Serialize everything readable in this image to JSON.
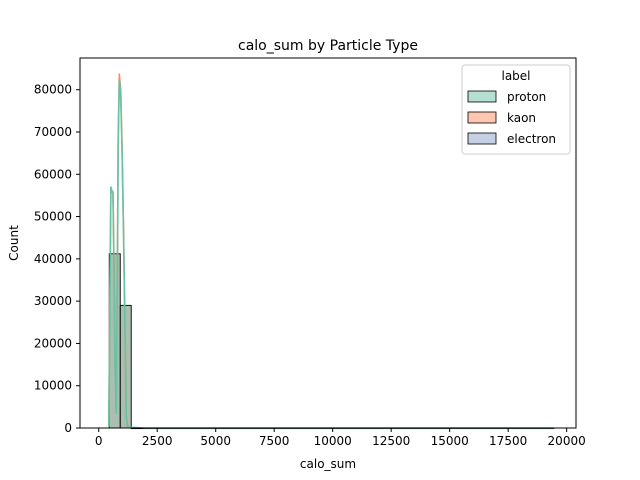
{
  "chart_data": {
    "type": "bar",
    "title": "calo_sum by Particle Type",
    "xlabel": "calo_sum",
    "ylabel": "Count",
    "xlim": [
      -800,
      20400
    ],
    "ylim": [
      0,
      87500
    ],
    "x_ticks": [
      0,
      2500,
      5000,
      7500,
      10000,
      12500,
      15000,
      17500,
      20000
    ],
    "x_tick_labels": [
      "0",
      "2500",
      "5000",
      "7500",
      "10000",
      "12500",
      "15000",
      "17500",
      "20000"
    ],
    "y_ticks": [
      0,
      10000,
      20000,
      30000,
      40000,
      50000,
      60000,
      70000,
      80000
    ],
    "y_tick_labels": [
      "0",
      "10000",
      "20000",
      "30000",
      "40000",
      "50000",
      "60000",
      "70000",
      "80000"
    ],
    "legend": {
      "title": "label",
      "position": "top-right",
      "entries": [
        "proton",
        "kaon",
        "electron"
      ]
    },
    "colors": {
      "proton": "#66c2a5",
      "kaon": "#fc8d62",
      "electron": "#8da0cb"
    },
    "bins": [
      {
        "x0": 450,
        "x1": 920,
        "value": 41200
      },
      {
        "x0": 920,
        "x1": 1390,
        "value": 29000
      },
      {
        "x0": 1390,
        "x1": 19450,
        "value": 0
      }
    ],
    "kde_lines": [
      {
        "series": "kaon",
        "x": [
          430,
          470,
          520,
          560,
          610,
          650,
          700,
          750,
          790,
          830,
          880,
          940,
          1000,
          1060,
          1120,
          1180,
          1240
        ],
        "y": [
          500,
          25000,
          56500,
          56000,
          55500,
          40000,
          15000,
          4000,
          30000,
          68000,
          83700,
          80000,
          66000,
          47000,
          25000,
          3000,
          0
        ]
      },
      {
        "series": "proton",
        "x": [
          430,
          470,
          520,
          560,
          610,
          650,
          700,
          750,
          790,
          830,
          880,
          940,
          1000,
          1060,
          1120,
          1180,
          1240,
          2000,
          5000,
          10000,
          15000,
          19450
        ],
        "y": [
          300,
          24000,
          57000,
          56200,
          55800,
          39000,
          14000,
          3500,
          29000,
          66000,
          82500,
          79000,
          65000,
          46000,
          24000,
          2500,
          200,
          0,
          0,
          0,
          0,
          0
        ]
      }
    ]
  }
}
